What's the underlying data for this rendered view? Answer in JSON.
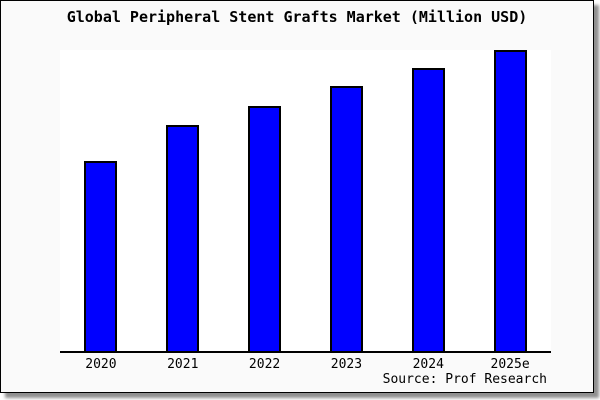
{
  "chart": {
    "title": "Global Peripheral Stent Grafts Market (Million USD)",
    "source": "Source: Prof Research"
  },
  "chart_data": {
    "type": "bar",
    "title": "Global Peripheral Stent Grafts Market (Million USD)",
    "categories": [
      "2020",
      "2021",
      "2022",
      "2023",
      "2024",
      "2025e"
    ],
    "values": [
      63,
      75,
      81.5,
      88,
      94,
      100
    ],
    "value_note": "y-axis has no tick labels or gridlines; values are relative bar heights normalized to 2025e = 100",
    "xlabel": "",
    "ylabel": "",
    "ylim": [
      0,
      100
    ],
    "grid": false,
    "legend_position": "none",
    "bar_color": "#0000ff",
    "bar_border_color": "#000000",
    "source": "Source: Prof Research"
  },
  "colors": {
    "panel_background": "#fafafa",
    "plot_background": "#ffffff",
    "axis": "#000000",
    "text": "#000000",
    "shadow": "#909090",
    "border": "#000000"
  }
}
